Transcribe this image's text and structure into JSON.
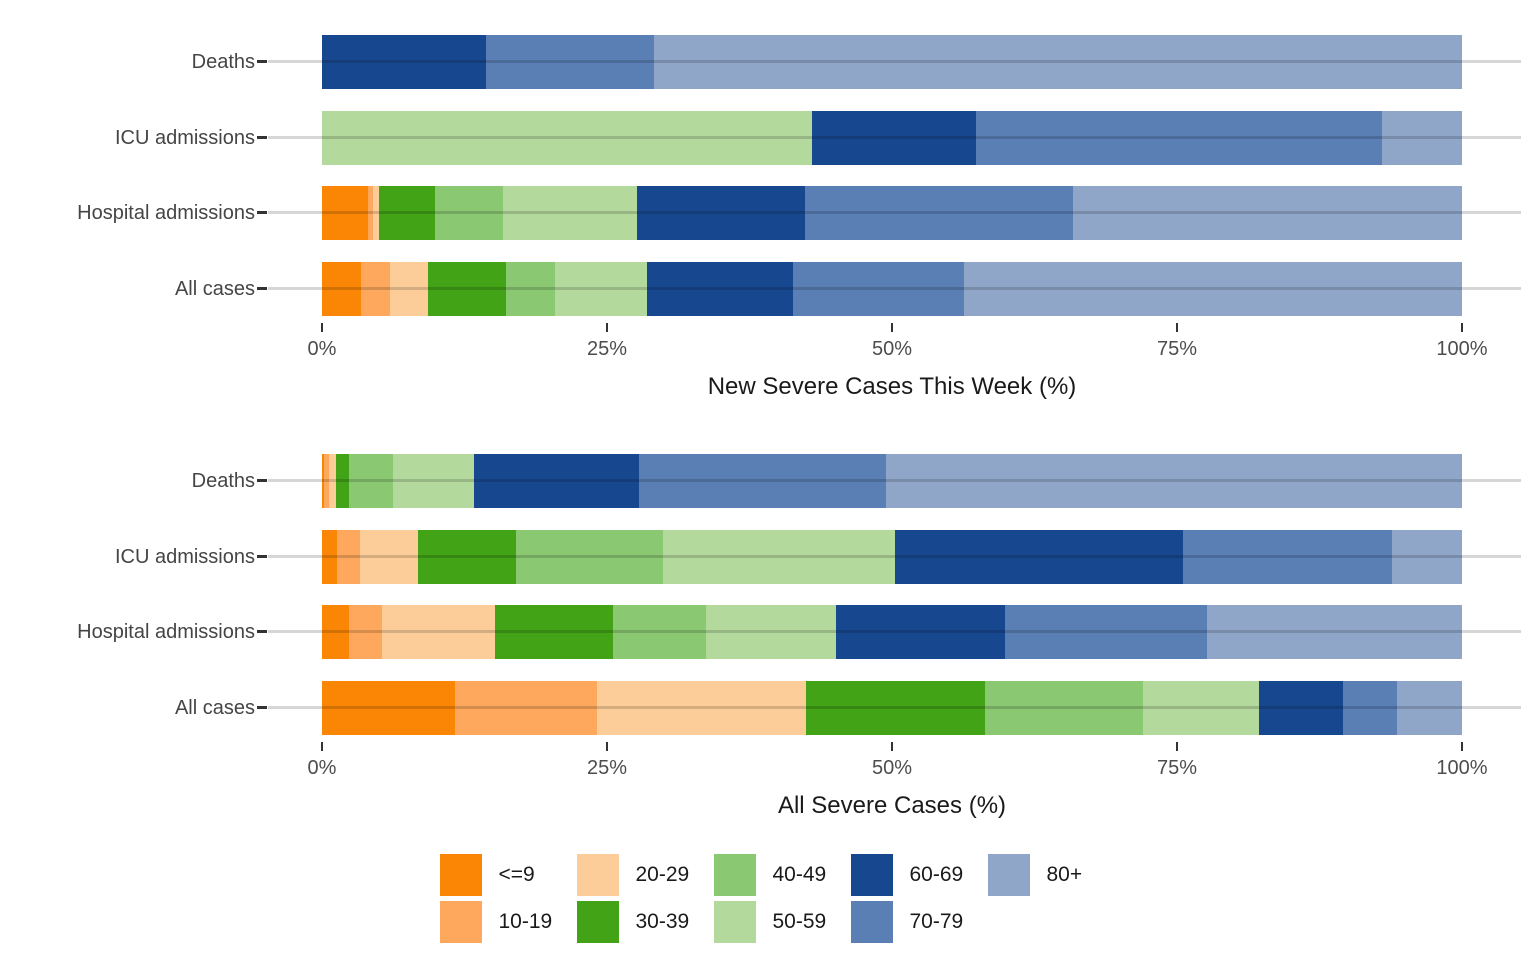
{
  "figure": {
    "background": "#FFFFFF"
  },
  "legend": {
    "groups": [
      {
        "label": "<=9",
        "color": "#FB8605"
      },
      {
        "label": "10-19",
        "color": "#FDA85C"
      },
      {
        "label": "20-29",
        "color": "#FCCD99"
      },
      {
        "label": "30-39",
        "color": "#42A317"
      },
      {
        "label": "40-49",
        "color": "#8BC872"
      },
      {
        "label": "50-59",
        "color": "#B3D99D"
      },
      {
        "label": "60-69",
        "color": "#17488F"
      },
      {
        "label": "70-79",
        "color": "#5A7FB4"
      },
      {
        "label": "80+",
        "color": "#8FA6C9"
      }
    ]
  },
  "chart_data": [
    {
      "type": "bar",
      "stacked": true,
      "orientation": "horizontal",
      "xlabel": "New Severe Cases This Week (%)",
      "xlim": [
        0,
        100
      ],
      "x_ticks": [
        0,
        25,
        50,
        75,
        100
      ],
      "x_tick_labels": [
        "0%",
        "25%",
        "50%",
        "75%",
        "100%"
      ],
      "grid": "major-y",
      "categories": [
        "Deaths",
        "ICU admissions",
        "Hospital admissions",
        "All cases"
      ],
      "groups": [
        "<=9",
        "10-19",
        "20-29",
        "30-39",
        "40-49",
        "50-59",
        "60-69",
        "70-79",
        "80+"
      ],
      "colors": [
        "#FB8605",
        "#FDA85C",
        "#FCCD99",
        "#42A317",
        "#8BC872",
        "#B3D99D",
        "#17488F",
        "#5A7FB4",
        "#8FA6C9"
      ],
      "series": [
        {
          "name": "<=9",
          "values": [
            0,
            0,
            4.0,
            3.4
          ]
        },
        {
          "name": "10-19",
          "values": [
            0,
            0,
            0.5,
            2.6
          ]
        },
        {
          "name": "20-29",
          "values": [
            0,
            0,
            0.5,
            3.3
          ]
        },
        {
          "name": "30-39",
          "values": [
            0,
            0,
            4.9,
            6.8
          ]
        },
        {
          "name": "40-49",
          "values": [
            0,
            0,
            6.0,
            4.3
          ]
        },
        {
          "name": "50-59",
          "values": [
            0,
            43.0,
            11.7,
            8.1
          ]
        },
        {
          "name": "60-69",
          "values": [
            14.4,
            14.4,
            14.8,
            12.8
          ]
        },
        {
          "name": "70-79",
          "values": [
            14.7,
            35.6,
            23.5,
            15.0
          ]
        },
        {
          "name": "80+",
          "values": [
            70.9,
            7.0,
            34.1,
            43.7
          ]
        }
      ]
    },
    {
      "type": "bar",
      "stacked": true,
      "orientation": "horizontal",
      "xlabel": "All Severe Cases (%)",
      "xlim": [
        0,
        100
      ],
      "x_ticks": [
        0,
        25,
        50,
        75,
        100
      ],
      "x_tick_labels": [
        "0%",
        "25%",
        "50%",
        "75%",
        "100%"
      ],
      "grid": "major-y",
      "categories": [
        "Deaths",
        "ICU admissions",
        "Hospital admissions",
        "All cases"
      ],
      "groups": [
        "<=9",
        "10-19",
        "20-29",
        "30-39",
        "40-49",
        "50-59",
        "60-69",
        "70-79",
        "80+"
      ],
      "colors": [
        "#FB8605",
        "#FDA85C",
        "#FCCD99",
        "#42A317",
        "#8BC872",
        "#B3D99D",
        "#17488F",
        "#5A7FB4",
        "#8FA6C9"
      ],
      "series": [
        {
          "name": "<=9",
          "values": [
            0.2,
            1.3,
            2.4,
            11.7
          ]
        },
        {
          "name": "10-19",
          "values": [
            0.4,
            2.0,
            2.9,
            12.4
          ]
        },
        {
          "name": "20-29",
          "values": [
            0.6,
            5.1,
            9.9,
            18.4
          ]
        },
        {
          "name": "30-39",
          "values": [
            1.2,
            8.6,
            10.3,
            15.7
          ]
        },
        {
          "name": "40-49",
          "values": [
            3.8,
            12.9,
            8.2,
            13.8
          ]
        },
        {
          "name": "50-59",
          "values": [
            7.1,
            20.4,
            11.4,
            10.2
          ]
        },
        {
          "name": "60-69",
          "values": [
            14.5,
            25.2,
            14.8,
            7.4
          ]
        },
        {
          "name": "70-79",
          "values": [
            21.7,
            18.4,
            17.7,
            4.7
          ]
        },
        {
          "name": "80+",
          "values": [
            50.5,
            6.1,
            22.4,
            5.7
          ]
        }
      ]
    }
  ]
}
